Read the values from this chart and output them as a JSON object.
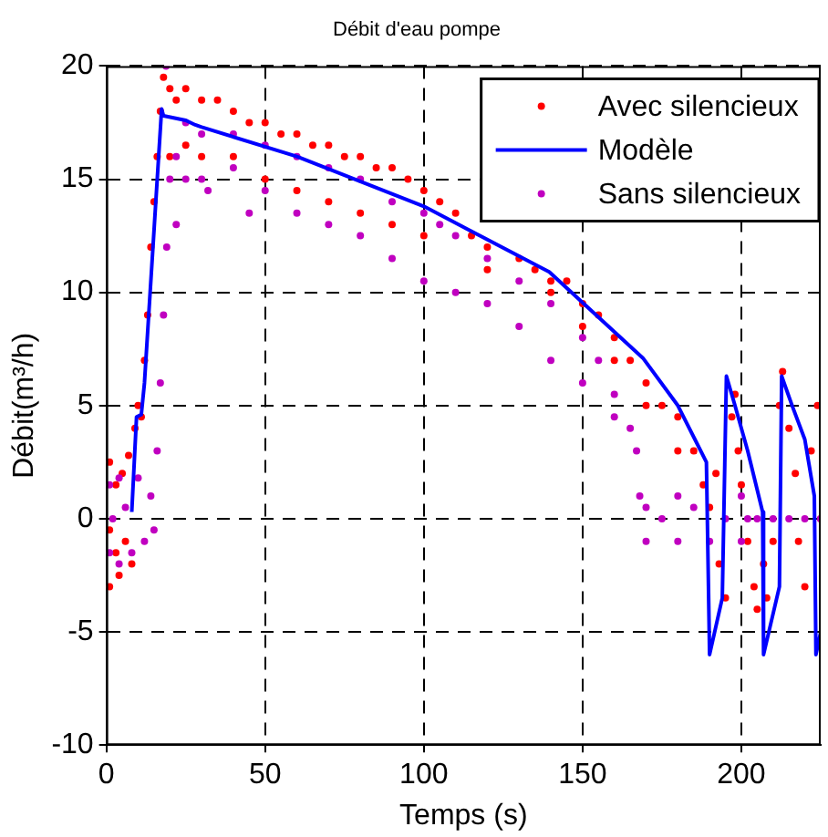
{
  "chart_data": {
    "type": "scatter",
    "title": "Débit d'eau pompe",
    "xlabel": "Temps (s)",
    "ylabel": "Débit(m³/h)",
    "xlim": [
      0,
      225
    ],
    "xticks": [
      0,
      50,
      100,
      150,
      200
    ],
    "ylim": [
      -10,
      20
    ],
    "yticks": [
      -10,
      -5,
      0,
      5,
      10,
      15,
      20
    ],
    "grid": true,
    "legend": "top right",
    "series": [
      {
        "name": "Avec silencieux",
        "marker": "circle",
        "color": "#ff0000",
        "x": [
          1,
          1,
          1,
          3,
          3,
          4,
          5,
          6,
          7,
          8,
          9,
          10,
          11,
          12,
          13,
          14,
          15,
          16,
          17,
          18,
          20,
          20,
          22,
          25,
          25,
          30,
          30,
          35,
          40,
          40,
          45,
          50,
          50,
          55,
          60,
          60,
          65,
          70,
          70,
          75,
          80,
          80,
          85,
          90,
          90,
          95,
          100,
          100,
          105,
          110,
          115,
          120,
          120,
          130,
          135,
          140,
          140,
          145,
          150,
          150,
          155,
          160,
          160,
          165,
          170,
          170,
          175,
          180,
          180,
          185,
          188,
          190,
          192,
          193,
          195,
          197,
          198,
          199,
          200,
          202,
          204,
          205,
          207,
          208,
          210,
          212,
          213,
          215,
          217,
          218,
          220,
          222,
          224,
          225
        ],
        "values": [
          2.5,
          -0.5,
          -3,
          1.5,
          -1.5,
          -2.5,
          2,
          -1,
          2.8,
          -2,
          4,
          5,
          4.5,
          7,
          9,
          12,
          14,
          16,
          18,
          19.5,
          19,
          16,
          18.5,
          19,
          16.5,
          18.5,
          16,
          18.5,
          18,
          16,
          17.5,
          17.5,
          15,
          17,
          17,
          14.5,
          16.5,
          16.5,
          14,
          16,
          16,
          13.5,
          15.5,
          15.5,
          13,
          15,
          14.5,
          12.5,
          14,
          13.5,
          12.5,
          12,
          11,
          11.5,
          11,
          10.5,
          10,
          10.5,
          9.5,
          8.5,
          9,
          8,
          7,
          7,
          6,
          5,
          5,
          4.5,
          3,
          3,
          1.5,
          0.5,
          2,
          -2,
          -3.5,
          4.5,
          5.5,
          3,
          1.5,
          -1,
          -3,
          -4,
          -2,
          -3.5,
          -1,
          5,
          6.5,
          4,
          2,
          -1,
          -3,
          3,
          5,
          0
        ]
      },
      {
        "name": "Modèle",
        "type": "line",
        "marker": "none",
        "line_style": "solid",
        "color": "#0000ff",
        "x": [
          8,
          9.5,
          11,
          12,
          17.4,
          18,
          25,
          28,
          30,
          60,
          100,
          139.5,
          169,
          180,
          189,
          190,
          194,
          195.3,
          198,
          202,
          206.7,
          207,
          212,
          212.7,
          216,
          220,
          223,
          223.5,
          225
        ],
        "values": [
          0.3,
          4.5,
          4.6,
          6,
          18.1,
          17.8,
          17.6,
          17.4,
          17.3,
          16,
          13.8,
          10.9,
          7.1,
          5,
          2.5,
          -6,
          -3.5,
          6.3,
          5,
          3,
          0.3,
          -6,
          -3,
          6.3,
          5,
          3.5,
          1,
          -6,
          -5
        ]
      },
      {
        "name": "Sans silencieux",
        "marker": "circle",
        "color": "#c000c0",
        "x": [
          1,
          1,
          2,
          4,
          4,
          6,
          8,
          10,
          12,
          14,
          15,
          16,
          17,
          18,
          19,
          18.8,
          20,
          22,
          22,
          25,
          25,
          30,
          30,
          32,
          40,
          40,
          45,
          50,
          50,
          60,
          60,
          70,
          70,
          80,
          80,
          90,
          90,
          100,
          100,
          105,
          110,
          110,
          120,
          120,
          130,
          130,
          140,
          140,
          150,
          150,
          155,
          160,
          160,
          165,
          167,
          168,
          170,
          170,
          175,
          180,
          180,
          185,
          190,
          195,
          200,
          200,
          202,
          205,
          210,
          215,
          220,
          225
        ],
        "values": [
          1.5,
          -1.5,
          0,
          1.8,
          -2,
          0.5,
          -1.5,
          1.8,
          -1,
          1,
          -0.5,
          3,
          6,
          9,
          12,
          20,
          15,
          16,
          13,
          17.5,
          15,
          17,
          15,
          14.5,
          17,
          15.5,
          13.5,
          16.5,
          14.5,
          16,
          13.5,
          15.5,
          13,
          15,
          12.5,
          14,
          11.5,
          13.5,
          10.5,
          13,
          12.5,
          10,
          11.5,
          9.5,
          10.5,
          8.5,
          9.5,
          7,
          8,
          6,
          7,
          5.5,
          4.5,
          4,
          3,
          1,
          0.5,
          -1,
          0,
          1,
          -1,
          0.5,
          -1,
          0,
          1,
          -1,
          0,
          0,
          0,
          0,
          0,
          0
        ]
      }
    ]
  }
}
